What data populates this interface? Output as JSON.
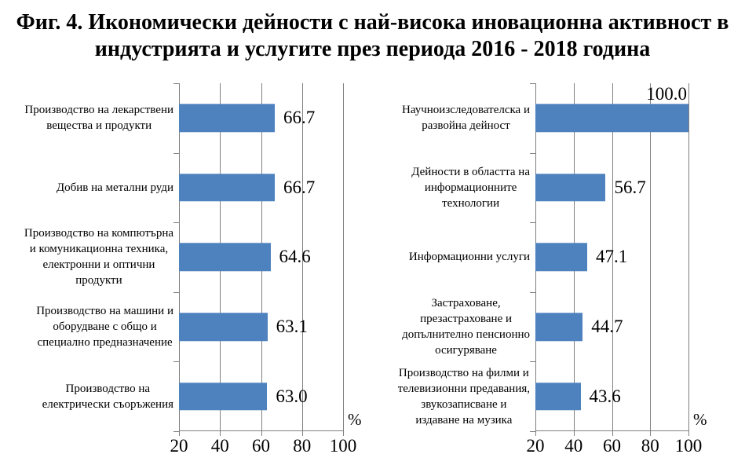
{
  "title": "Фиг. 4. Икономически дейности с най-висока иновационна активност в\nиндустрията и услугите през периода 2016 - 2018 година",
  "chart_data": [
    {
      "type": "bar",
      "orientation": "horizontal",
      "panel": "industry",
      "title": "",
      "categories": [
        "Производство на лекарствени\nвещества и продукти",
        "Добив на метални руди",
        "Производство на компютърна\nи комуникационна техника,\nелектронни и оптични\nпродукти",
        "Производство на машини и\nоборудване с общо и\nспециално предназначение",
        "Производство на\nелектрически съоръжения"
      ],
      "values": [
        66.7,
        66.7,
        64.6,
        63.1,
        63.0
      ],
      "value_labels": [
        "66.7",
        "66.7",
        "64.6",
        "63.1",
        "63.0"
      ],
      "xlabel": "%",
      "xlim": [
        20,
        100
      ],
      "xticks": [
        20,
        40,
        60,
        80,
        100
      ],
      "grid": true,
      "legend": false,
      "bar_color": "#4E82BE",
      "axis_color": "#7F7F7F"
    },
    {
      "type": "bar",
      "orientation": "horizontal",
      "panel": "services",
      "title": "",
      "categories": [
        "Научноизследователска и\nразвойна дейност",
        "Дейности в областта на\nинформационните\nтехнологии",
        "Информационни услуги",
        "Застраховане,\nпрезастраховане и\nдопълнително пенсионно\nосигуряване",
        "Производство на филми и\nтелевизионни предавания,\nзвукозаписване и\nиздаване на музика"
      ],
      "values": [
        100.0,
        56.7,
        47.1,
        44.7,
        43.6
      ],
      "value_labels": [
        "100.0",
        "56.7",
        "47.1",
        "44.7",
        "43.6"
      ],
      "xlabel": "%",
      "xlim": [
        20,
        100
      ],
      "xticks": [
        20,
        40,
        60,
        80,
        100
      ],
      "grid": true,
      "legend": false,
      "bar_color": "#4E82BE",
      "axis_color": "#7F7F7F"
    }
  ]
}
